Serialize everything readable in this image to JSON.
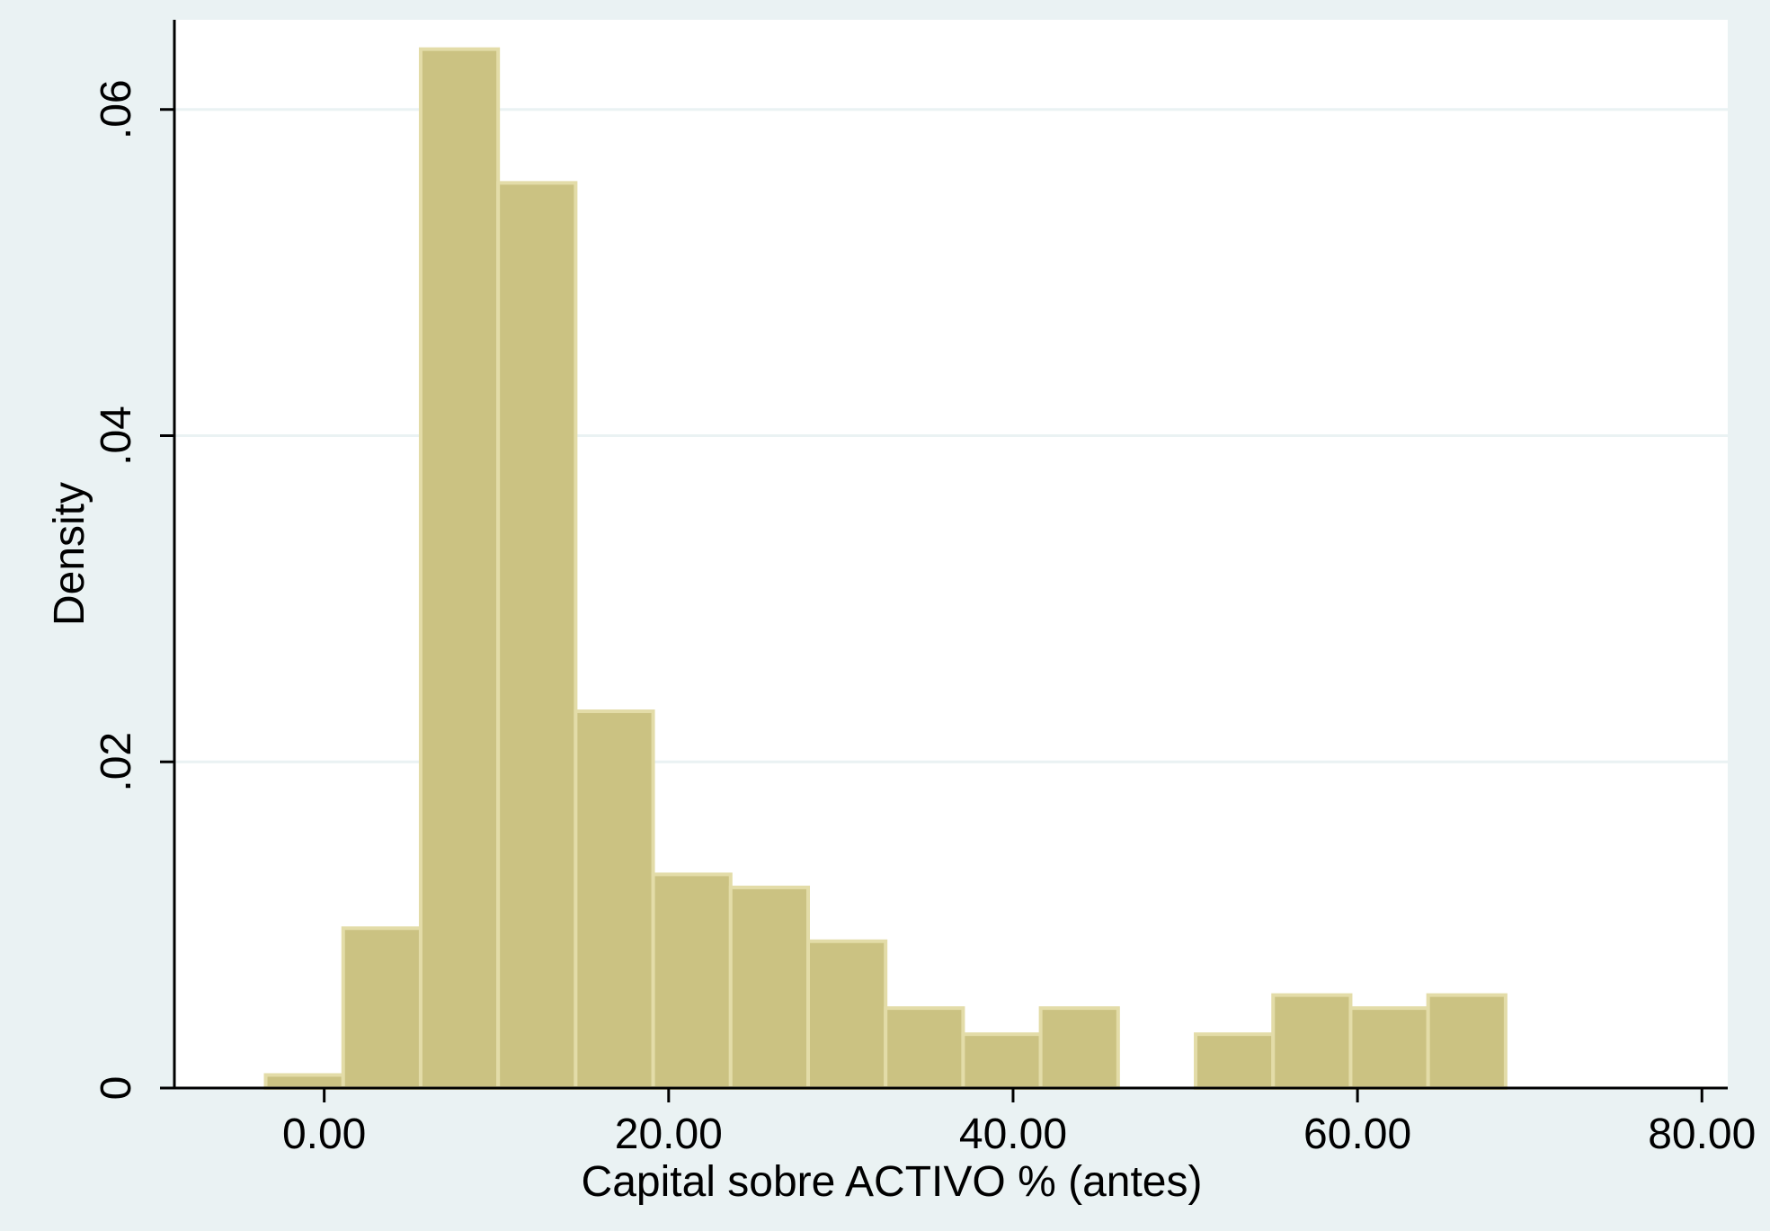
{
  "chart_data": {
    "type": "bar",
    "subtype": "histogram",
    "xlabel": "Capital sobre ACTIVO % (antes)",
    "ylabel": "Density",
    "xlim": [
      -8.7,
      81.5
    ],
    "ylim": [
      0,
      0.0655
    ],
    "x_ticks": [
      {
        "value": 0,
        "label": "0.00"
      },
      {
        "value": 20,
        "label": "20.00"
      },
      {
        "value": 40,
        "label": "40.00"
      },
      {
        "value": 60,
        "label": "60.00"
      },
      {
        "value": 80,
        "label": "80.00"
      }
    ],
    "y_ticks": [
      {
        "value": 0,
        "label": "0"
      },
      {
        "value": 0.02,
        "label": ".02"
      },
      {
        "value": 0.04,
        "label": ".04"
      },
      {
        "value": 0.06,
        "label": ".06"
      }
    ],
    "bins": [
      {
        "x0": -3.4,
        "x1": 1.1,
        "density": 0.0008
      },
      {
        "x0": 1.1,
        "x1": 5.6,
        "density": 0.0098
      },
      {
        "x0": 5.6,
        "x1": 10.1,
        "density": 0.0637
      },
      {
        "x0": 10.1,
        "x1": 14.6,
        "density": 0.0555
      },
      {
        "x0": 14.6,
        "x1": 19.1,
        "density": 0.0231
      },
      {
        "x0": 19.1,
        "x1": 23.6,
        "density": 0.0131
      },
      {
        "x0": 23.6,
        "x1": 28.1,
        "density": 0.0123
      },
      {
        "x0": 28.1,
        "x1": 32.6,
        "density": 0.009
      },
      {
        "x0": 32.6,
        "x1": 37.1,
        "density": 0.0049
      },
      {
        "x0": 37.1,
        "x1": 41.6,
        "density": 0.0033
      },
      {
        "x0": 41.6,
        "x1": 46.1,
        "density": 0.0049
      },
      {
        "x0": 46.1,
        "x1": 50.6,
        "density": 0
      },
      {
        "x0": 50.6,
        "x1": 55.1,
        "density": 0.0033
      },
      {
        "x0": 55.1,
        "x1": 59.6,
        "density": 0.0057
      },
      {
        "x0": 59.6,
        "x1": 64.1,
        "density": 0.0049
      },
      {
        "x0": 64.1,
        "x1": 68.6,
        "density": 0.0057
      }
    ],
    "grid": "horizontal",
    "colors": {
      "bar_fill": "#cbc282",
      "bar_edge": "#e3dca8",
      "plot_background": "#ffffff",
      "page_background": "#eaf2f3",
      "gridline": "#eaf2f3",
      "axis": "#000000"
    }
  }
}
